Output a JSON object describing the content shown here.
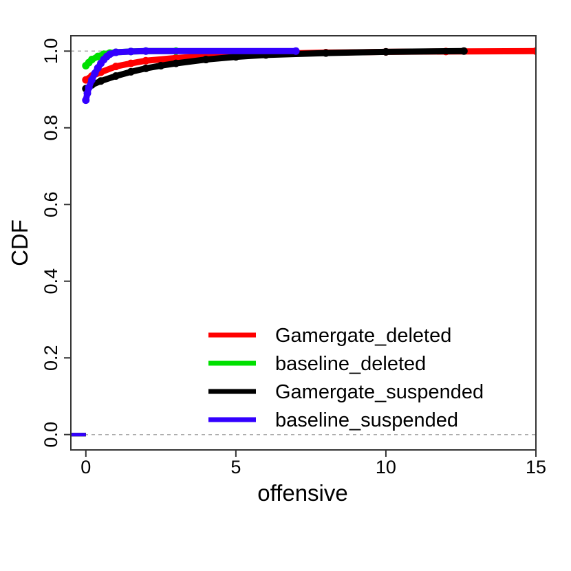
{
  "chart_data": {
    "type": "line",
    "title": "",
    "xlabel": "offensive",
    "ylabel": "CDF",
    "xlim": [
      -0.5,
      15
    ],
    "ylim": [
      -0.04,
      1.04
    ],
    "xticks": [
      0,
      5,
      10,
      15
    ],
    "xtick_labels": [
      "0",
      "5",
      "10",
      "15"
    ],
    "yticks": [
      0.0,
      0.2,
      0.4,
      0.6,
      0.8,
      1.0
    ],
    "ytick_labels": [
      "0.0",
      "0.2",
      "0.4",
      "0.6",
      "0.8",
      "1.0"
    ],
    "reference_lines": [
      0,
      1
    ],
    "grid": false,
    "legend_position": "bottom-right",
    "series": [
      {
        "name": "Gamergate_deleted",
        "color": "#ff0000",
        "start_point": [
          -0.5,
          0
        ],
        "x": [
          0,
          0.2,
          0.5,
          1,
          1.5,
          2,
          3,
          4,
          5,
          6,
          8,
          10,
          12,
          15
        ],
        "y": [
          0.925,
          0.935,
          0.945,
          0.96,
          0.968,
          0.975,
          0.982,
          0.987,
          0.99,
          0.993,
          0.996,
          0.998,
          0.999,
          1.0
        ]
      },
      {
        "name": "baseline_deleted",
        "color": "#00e000",
        "start_point": [
          -0.5,
          0
        ],
        "x": [
          0,
          0.1,
          0.2,
          0.4,
          0.6,
          0.8,
          1,
          1.5,
          2,
          3
        ],
        "y": [
          0.962,
          0.97,
          0.978,
          0.986,
          0.992,
          0.995,
          0.997,
          0.999,
          1.0,
          1.0
        ]
      },
      {
        "name": "Gamergate_suspended",
        "color": "#000000",
        "start_point": [
          -0.5,
          0
        ],
        "x": [
          0,
          0.2,
          0.5,
          1,
          1.5,
          2,
          2.5,
          3,
          4,
          5,
          6,
          8,
          10,
          12.6
        ],
        "y": [
          0.902,
          0.912,
          0.922,
          0.935,
          0.946,
          0.955,
          0.962,
          0.968,
          0.978,
          0.985,
          0.99,
          0.995,
          0.998,
          1.0
        ]
      },
      {
        "name": "baseline_suspended",
        "color": "#3300ff",
        "start_point": [
          -0.5,
          0
        ],
        "x": [
          0,
          0.05,
          0.1,
          0.2,
          0.3,
          0.4,
          0.5,
          0.6,
          0.7,
          0.8,
          1,
          1.5,
          2,
          7
        ],
        "y": [
          0.872,
          0.89,
          0.905,
          0.925,
          0.942,
          0.956,
          0.968,
          0.978,
          0.986,
          0.992,
          0.997,
          0.999,
          1.0,
          1.0
        ]
      }
    ]
  }
}
